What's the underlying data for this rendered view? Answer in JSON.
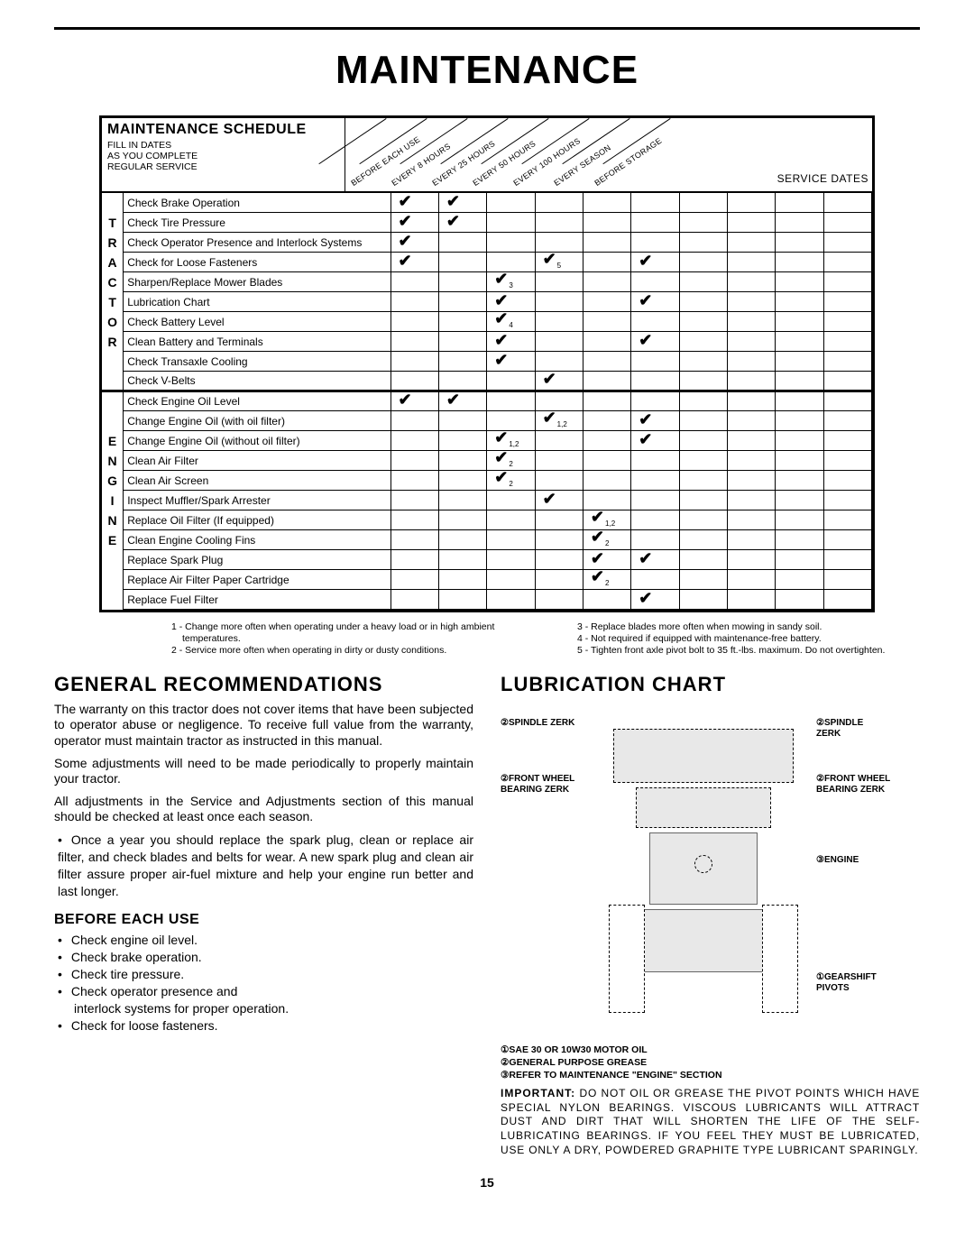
{
  "page_title": "MAINTENANCE",
  "page_number": "15",
  "schedule": {
    "title": "MAINTENANCE SCHEDULE",
    "fill_in": "FILL IN DATES\nAS YOU COMPLETE\nREGULAR SERVICE",
    "columns": [
      "BEFORE EACH USE",
      "EVERY 8 HOURS",
      "EVERY 25 HOURS",
      "EVERY 50 HOURS",
      "EVERY 100 HOURS",
      "EVERY SEASON",
      "BEFORE STORAGE"
    ],
    "service_dates_label": "SERVICE DATES",
    "side_label_1": "TRACTOR",
    "side_label_2": "ENGINE",
    "rows": [
      {
        "group": "T",
        "task": "Check Brake Operation",
        "marks": [
          "✔",
          "✔",
          "",
          "",
          "",
          "",
          ""
        ],
        "sub": [
          "",
          "",
          "",
          "",
          "",
          "",
          ""
        ]
      },
      {
        "group": "T",
        "task": "Check Tire Pressure",
        "marks": [
          "✔",
          "✔",
          "",
          "",
          "",
          "",
          ""
        ],
        "sub": [
          "",
          "",
          "",
          "",
          "",
          "",
          ""
        ]
      },
      {
        "group": "T",
        "task": "Check Operator Presence and Interlock Systems",
        "marks": [
          "✔",
          "",
          "",
          "",
          "",
          "",
          ""
        ],
        "sub": [
          "",
          "",
          "",
          "",
          "",
          "",
          ""
        ]
      },
      {
        "group": "T",
        "task": "Check for Loose Fasteners",
        "marks": [
          "✔",
          "",
          "",
          "✔",
          "",
          "✔",
          ""
        ],
        "sub": [
          "",
          "",
          "",
          "5",
          "",
          "",
          ""
        ]
      },
      {
        "group": "T",
        "task": "Sharpen/Replace Mower Blades",
        "marks": [
          "",
          "",
          "✔",
          "",
          "",
          "",
          ""
        ],
        "sub": [
          "",
          "",
          "3",
          "",
          "",
          "",
          ""
        ]
      },
      {
        "group": "T",
        "task": "Lubrication Chart",
        "marks": [
          "",
          "",
          "✔",
          "",
          "",
          "✔",
          ""
        ],
        "sub": [
          "",
          "",
          "",
          "",
          "",
          "",
          ""
        ]
      },
      {
        "group": "T",
        "task": "Check Battery Level",
        "marks": [
          "",
          "",
          "✔",
          "",
          "",
          "",
          ""
        ],
        "sub": [
          "",
          "",
          "4",
          "",
          "",
          "",
          ""
        ]
      },
      {
        "group": "T",
        "task": "Clean Battery and Terminals",
        "marks": [
          "",
          "",
          "✔",
          "",
          "",
          "✔",
          ""
        ],
        "sub": [
          "",
          "",
          "",
          "",
          "",
          "",
          ""
        ]
      },
      {
        "group": "T",
        "task": "Check Transaxle Cooling",
        "marks": [
          "",
          "",
          "✔",
          "",
          "",
          "",
          ""
        ],
        "sub": [
          "",
          "",
          "",
          "",
          "",
          "",
          ""
        ]
      },
      {
        "group": "T",
        "task": "Check V-Belts",
        "marks": [
          "",
          "",
          "",
          "✔",
          "",
          "",
          ""
        ],
        "sub": [
          "",
          "",
          "",
          "",
          "",
          "",
          ""
        ]
      },
      {
        "group": "E",
        "task": "Check Engine Oil Level",
        "marks": [
          "✔",
          "✔",
          "",
          "",
          "",
          "",
          ""
        ],
        "sub": [
          "",
          "",
          "",
          "",
          "",
          "",
          ""
        ]
      },
      {
        "group": "E",
        "task": "Change Engine Oil (with oil filter)",
        "marks": [
          "",
          "",
          "",
          "✔",
          "",
          "✔",
          ""
        ],
        "sub": [
          "",
          "",
          "",
          "1,2",
          "",
          "",
          ""
        ]
      },
      {
        "group": "E",
        "task": "Change Engine Oil (without oil filter)",
        "marks": [
          "",
          "",
          "✔",
          "",
          "",
          "✔",
          ""
        ],
        "sub": [
          "",
          "",
          "1,2",
          "",
          "",
          "",
          ""
        ]
      },
      {
        "group": "E",
        "task": "Clean Air Filter",
        "marks": [
          "",
          "",
          "✔",
          "",
          "",
          "",
          ""
        ],
        "sub": [
          "",
          "",
          "2",
          "",
          "",
          "",
          ""
        ]
      },
      {
        "group": "E",
        "task": "Clean Air Screen",
        "marks": [
          "",
          "",
          "✔",
          "",
          "",
          "",
          ""
        ],
        "sub": [
          "",
          "",
          "2",
          "",
          "",
          "",
          ""
        ]
      },
      {
        "group": "E",
        "task": "Inspect Muffler/Spark Arrester",
        "marks": [
          "",
          "",
          "",
          "✔",
          "",
          "",
          ""
        ],
        "sub": [
          "",
          "",
          "",
          "",
          "",
          "",
          ""
        ]
      },
      {
        "group": "E",
        "task": "Replace Oil Filter (If equipped)",
        "marks": [
          "",
          "",
          "",
          "",
          "✔",
          "",
          ""
        ],
        "sub": [
          "",
          "",
          "",
          "",
          "1,2",
          "",
          ""
        ]
      },
      {
        "group": "E",
        "task": "Clean Engine Cooling Fins",
        "marks": [
          "",
          "",
          "",
          "",
          "✔",
          "",
          ""
        ],
        "sub": [
          "",
          "",
          "",
          "",
          "2",
          "",
          ""
        ]
      },
      {
        "group": "E",
        "task": "Replace Spark Plug",
        "marks": [
          "",
          "",
          "",
          "",
          "✔",
          "✔",
          ""
        ],
        "sub": [
          "",
          "",
          "",
          "",
          "",
          "",
          ""
        ]
      },
      {
        "group": "E",
        "task": "Replace Air Filter Paper Cartridge",
        "marks": [
          "",
          "",
          "",
          "",
          "✔",
          "",
          ""
        ],
        "sub": [
          "",
          "",
          "",
          "",
          "2",
          "",
          ""
        ]
      },
      {
        "group": "E",
        "task": "Replace Fuel Filter",
        "marks": [
          "",
          "",
          "",
          "",
          "",
          "✔",
          ""
        ],
        "sub": [
          "",
          "",
          "",
          "",
          "",
          "",
          ""
        ]
      }
    ]
  },
  "footnotes_left": [
    "1 - Change more often when operating under a heavy load or in high ambient temperatures.",
    "2 - Service more often when operating in dirty or dusty conditions."
  ],
  "footnotes_right": [
    "3 - Replace blades more often when mowing in sandy soil.",
    "4 - Not required if equipped with maintenance-free battery.",
    "5 - Tighten front axle pivot bolt to 35 ft.-lbs. maximum. Do not overtighten."
  ],
  "gen_rec_title": "GENERAL RECOMMENDATIONS",
  "gen_rec_p1": "The warranty on this tractor does not cover items that have been subjected to operator abuse or negligence. To receive full value from the warranty, operator must maintain tractor as instructed in this manual.",
  "gen_rec_p2": "Some adjustments will need to be made periodically to properly maintain your tractor.",
  "gen_rec_p3": "All adjustments in the Service and Adjustments section of this manual should be checked at least once each season.",
  "gen_rec_li": "Once a year you should replace the spark plug, clean or replace air filter, and check blades and belts for wear. A new spark plug and clean air filter assure proper air-fuel mixture and help your engine run better and last longer.",
  "before_title": "BEFORE EACH USE",
  "before_items": [
    "Check engine oil level.",
    "Check brake operation.",
    "Check tire pressure.",
    "Check operator presence and",
    "interlock systems for proper operation.",
    "Check for loose fasteners."
  ],
  "lube_title": "LUBRICATION CHART",
  "lube_labels": {
    "spindle_l": "②SPINDLE ZERK",
    "spindle_r": "②SPINDLE ZERK",
    "fwb_l": "②FRONT WHEEL BEARING ZERK",
    "fwb_r": "②FRONT WHEEL BEARING ZERK",
    "engine": "③ENGINE",
    "gearshift": "①GEARSHIFT PIVOTS"
  },
  "lube_notes": [
    "①SAE 30 OR 10W30 MOTOR OIL",
    "②GENERAL PURPOSE GREASE",
    "③REFER TO MAINTENANCE \"ENGINE\" SECTION"
  ],
  "important": "IMPORTANT: DO NOT OIL OR GREASE THE PIVOT POINTS WHICH HAVE SPECIAL NYLON BEARINGS. VISCOUS LUBRICANTS WILL ATTRACT DUST AND DIRT THAT WILL SHORTEN THE LIFE OF THE SELF-LUBRICATING BEARINGS. IF YOU FEEL THEY MUST BE LUBRICATED, USE ONLY A DRY, POWDERED GRAPHITE TYPE LUBRICANT SPARINGLY."
}
